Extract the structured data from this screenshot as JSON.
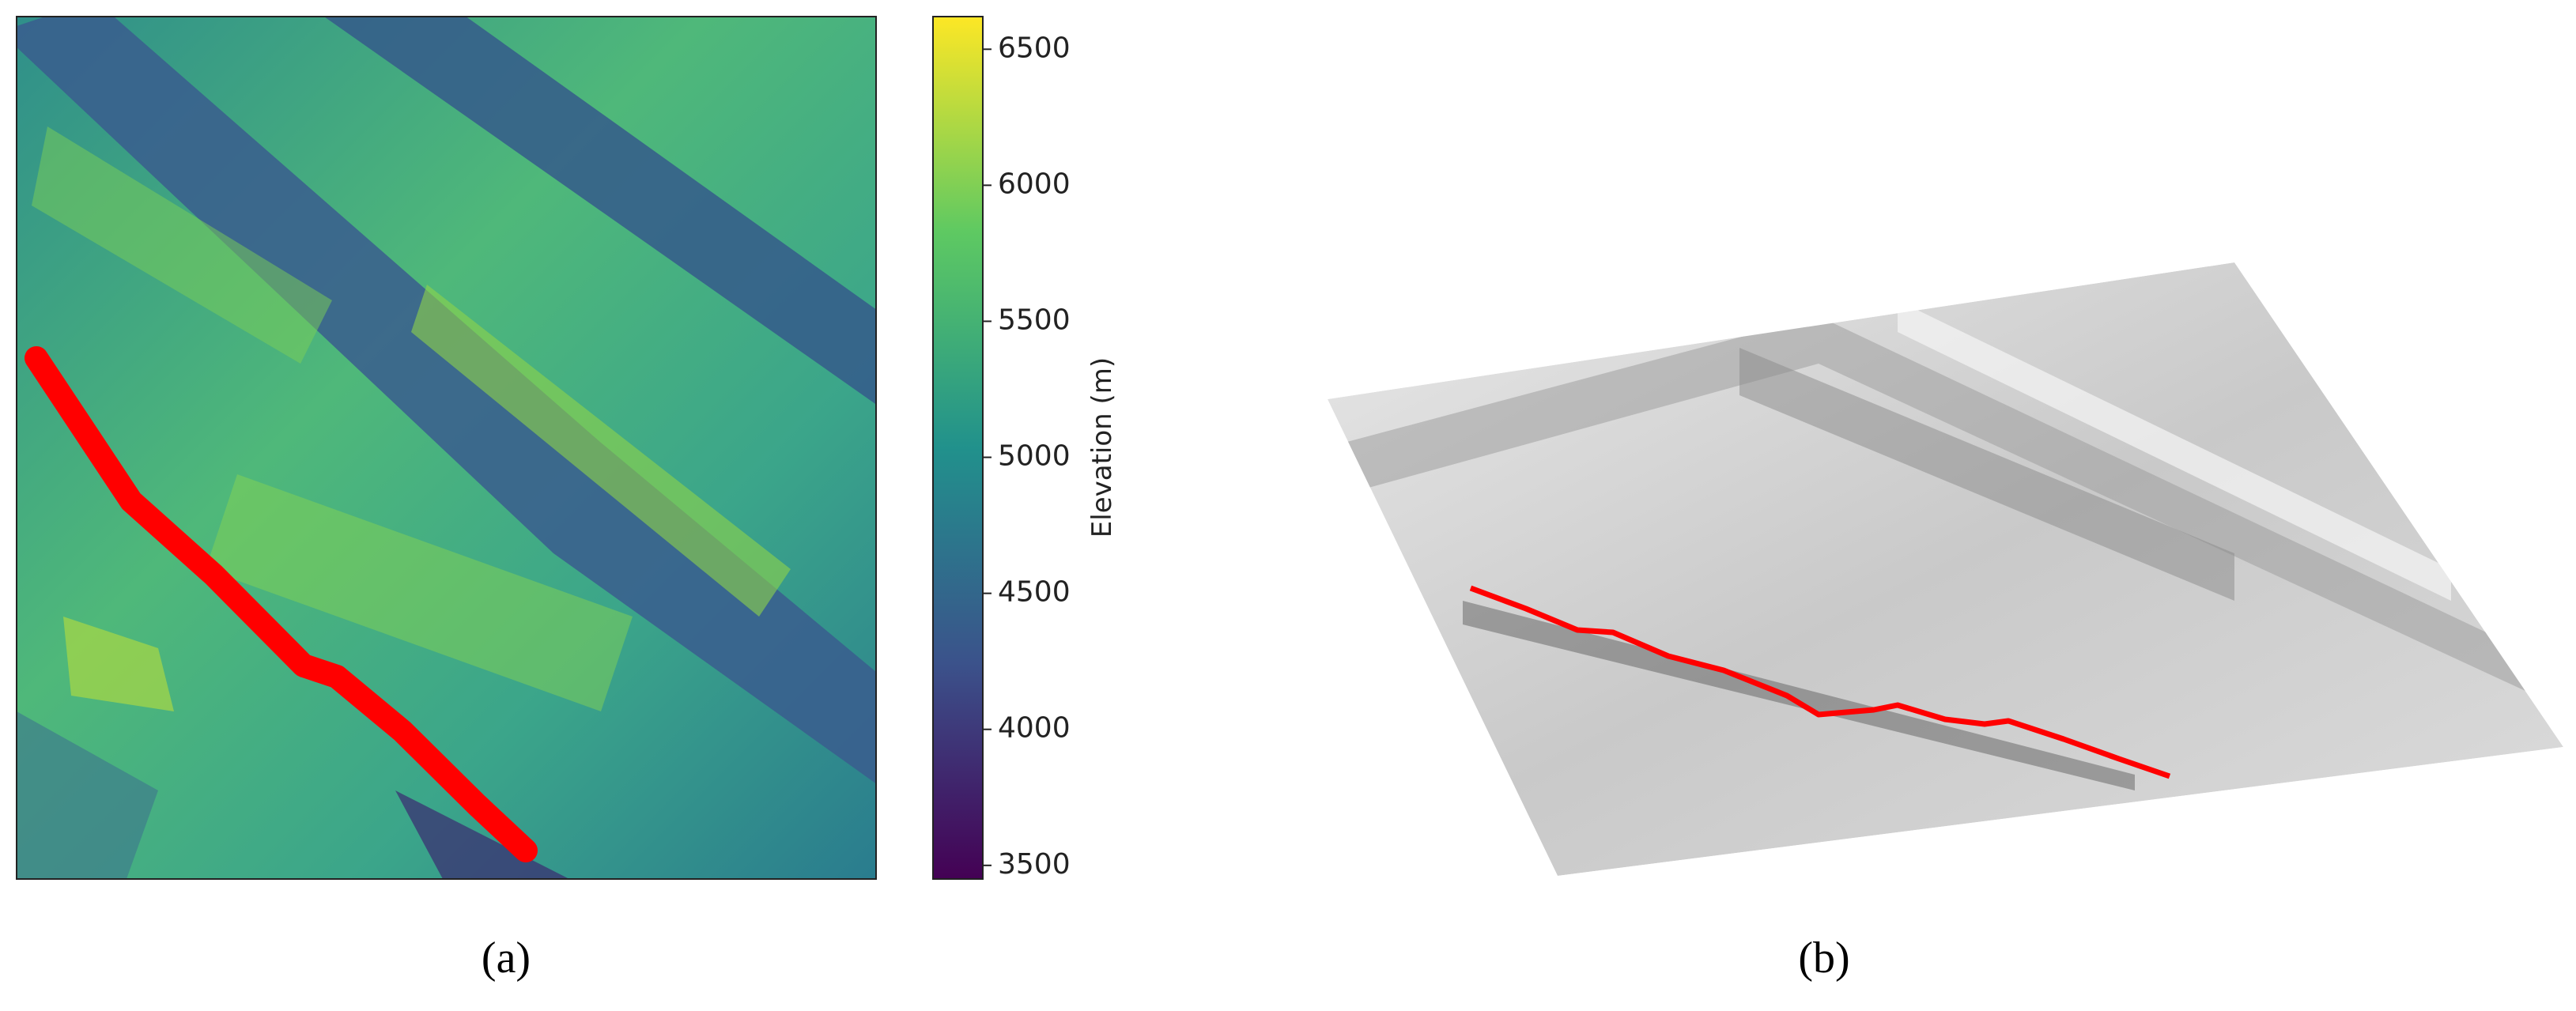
{
  "panels": [
    {
      "caption": "(a)",
      "colorbar": {
        "label": "Elevation (m)",
        "lim": [
          3450,
          6620
        ],
        "ticks": [
          3500,
          4000,
          4500,
          5000,
          5500,
          6000,
          6500
        ]
      }
    },
    {
      "caption": "(b)"
    }
  ]
}
